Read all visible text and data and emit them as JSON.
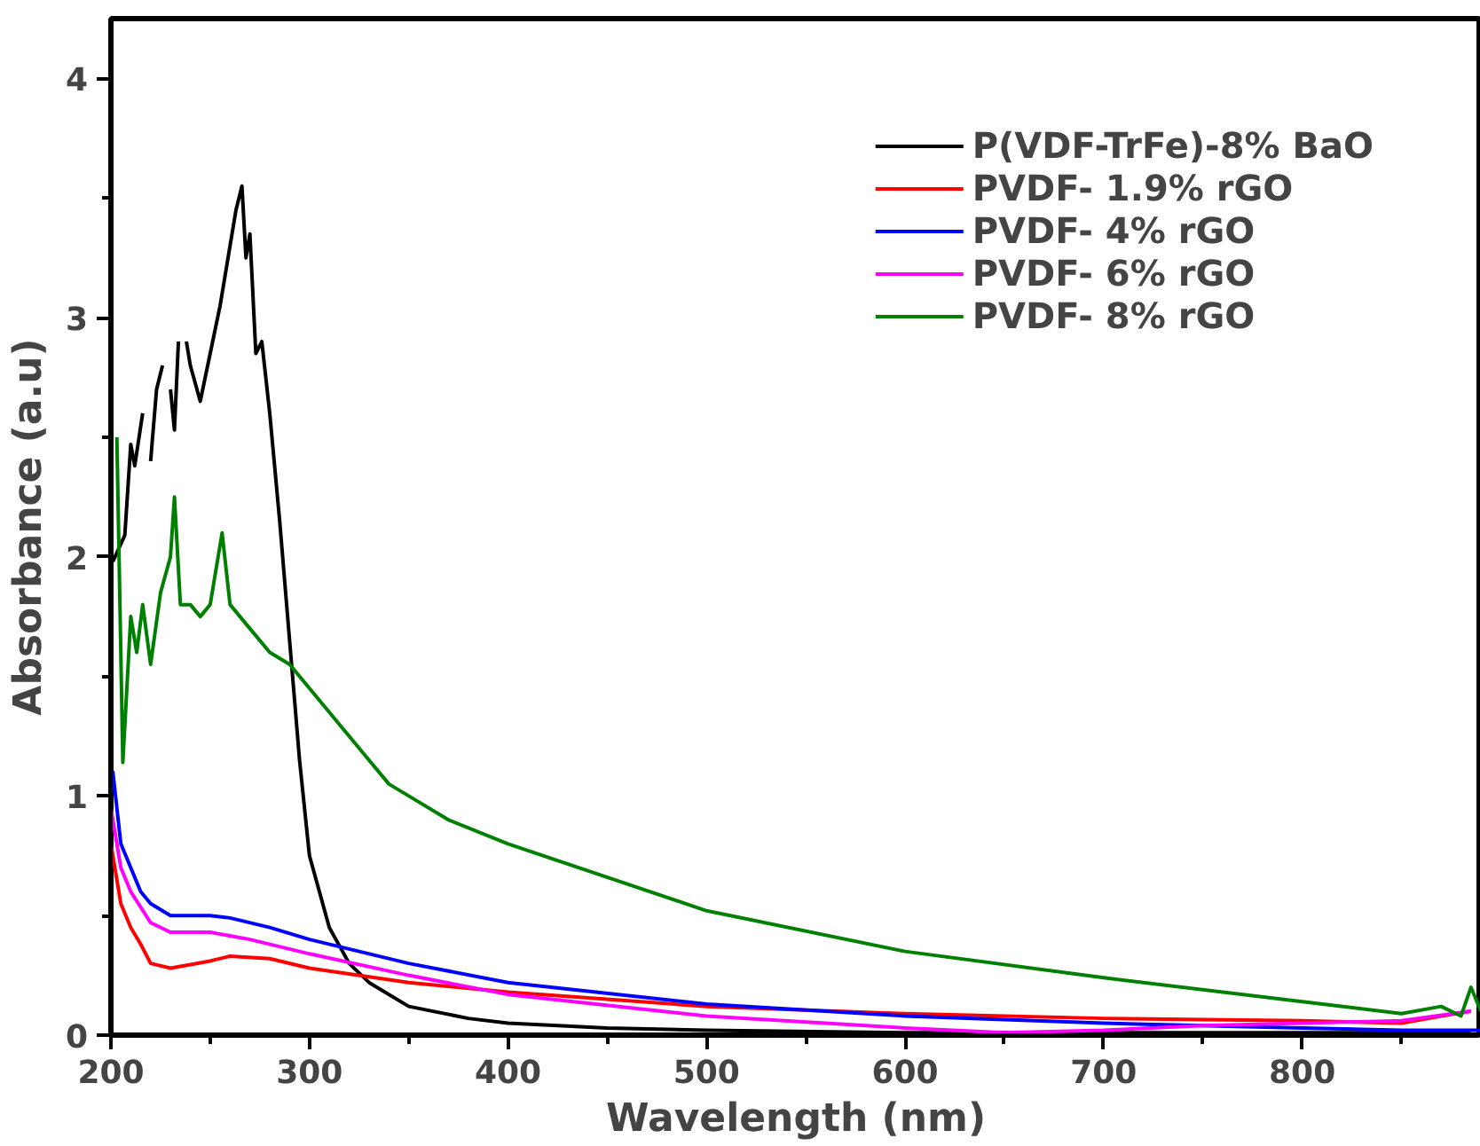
{
  "chart_data": {
    "type": "line",
    "xlabel": "Wavelength (nm)",
    "ylabel": "Absorbance (a.u)",
    "xlim": [
      200,
      890
    ],
    "ylim": [
      0,
      4.25
    ],
    "xticks": [
      200,
      {
        "value": 250,
        "label": null
      },
      300,
      {
        "value": 350,
        "label": null
      },
      400,
      {
        "value": 450,
        "label": null
      },
      500,
      {
        "value": 550,
        "label": null
      },
      600,
      {
        "value": 650,
        "label": null
      },
      700,
      {
        "value": 750,
        "label": null
      },
      800,
      {
        "value": 850,
        "label": null
      }
    ],
    "yticks": [
      0,
      {
        "value": 0.5,
        "label": null
      },
      1,
      {
        "value": 1.5,
        "label": null
      },
      2,
      {
        "value": 2.5,
        "label": null
      },
      3,
      {
        "value": 3.5,
        "label": null
      },
      4
    ],
    "grid": false,
    "legend": "top right",
    "line_style": "solid",
    "marker": "none",
    "series": [
      {
        "name": "P(VDF-TrFe)-8% BaO",
        "color": "#000000",
        "x": [
          201,
          207,
          210,
          212,
          216,
          218,
          220,
          223,
          226,
          228,
          230,
          232,
          234,
          236,
          238,
          240,
          245,
          250,
          255,
          260,
          263,
          266,
          268,
          270,
          273,
          276,
          280,
          285,
          290,
          295,
          300,
          310,
          320,
          330,
          350,
          380,
          400,
          450,
          500,
          600,
          700,
          800,
          885
        ],
        "values": [
          1.98,
          2.09,
          2.47,
          2.38,
          2.6,
          null,
          2.4,
          2.7,
          2.8,
          null,
          2.7,
          2.53,
          2.9,
          null,
          2.9,
          2.8,
          2.65,
          2.85,
          3.05,
          3.3,
          3.45,
          3.55,
          3.25,
          3.35,
          2.85,
          2.9,
          2.6,
          2.15,
          1.65,
          1.15,
          0.75,
          0.45,
          0.3,
          0.22,
          0.12,
          0.07,
          0.05,
          0.03,
          0.02,
          0.01,
          0.01,
          0.01,
          0.01
        ]
      },
      {
        "name": "PVDF- 1.9% rGO",
        "color": "#ff0000",
        "x": [
          200,
          205,
          210,
          215,
          220,
          230,
          250,
          260,
          280,
          300,
          350,
          400,
          500,
          600,
          700,
          800,
          850,
          870,
          885
        ],
        "values": [
          0.8,
          0.55,
          0.45,
          0.38,
          0.3,
          0.28,
          0.31,
          0.33,
          0.32,
          0.28,
          0.22,
          0.18,
          0.12,
          0.09,
          0.07,
          0.06,
          0.05,
          0.08,
          0.1
        ]
      },
      {
        "name": "PVDF- 4% rGO",
        "color": "#0000ff",
        "x": [
          200,
          201,
          205,
          210,
          215,
          220,
          230,
          250,
          260,
          280,
          300,
          350,
          400,
          500,
          600,
          700,
          800,
          850,
          890
        ],
        "values": [
          1.0,
          1.1,
          0.8,
          0.7,
          0.6,
          0.55,
          0.5,
          0.5,
          0.49,
          0.45,
          0.4,
          0.3,
          0.22,
          0.13,
          0.08,
          0.05,
          0.03,
          0.02,
          0.02
        ]
      },
      {
        "name": "PVDF- 6% rGO",
        "color": "#ff00ff",
        "x": [
          200,
          205,
          210,
          220,
          230,
          250,
          270,
          300,
          350,
          400,
          500,
          600,
          650,
          700,
          750,
          800,
          850,
          885
        ],
        "values": [
          0.95,
          0.7,
          0.6,
          0.47,
          0.43,
          0.43,
          0.4,
          0.34,
          0.25,
          0.17,
          0.08,
          0.03,
          0.01,
          0.02,
          0.04,
          0.05,
          0.06,
          0.1
        ]
      },
      {
        "name": "PVDF- 8% rGO",
        "color": "#008000",
        "x": [
          203,
          206,
          210,
          213,
          216,
          220,
          225,
          230,
          232,
          235,
          240,
          245,
          250,
          256,
          260,
          270,
          280,
          290,
          300,
          310,
          320,
          330,
          340,
          350,
          370,
          400,
          500,
          600,
          700,
          800,
          850,
          870,
          880,
          885,
          890
        ],
        "values": [
          2.5,
          1.14,
          1.75,
          1.6,
          1.8,
          1.55,
          1.85,
          2.0,
          2.25,
          1.8,
          1.8,
          1.75,
          1.8,
          2.1,
          1.8,
          1.7,
          1.6,
          1.55,
          1.45,
          1.35,
          1.25,
          1.15,
          1.05,
          1.0,
          0.9,
          0.8,
          0.52,
          0.35,
          0.24,
          0.14,
          0.09,
          0.12,
          0.08,
          0.2,
          0.1
        ]
      }
    ]
  }
}
